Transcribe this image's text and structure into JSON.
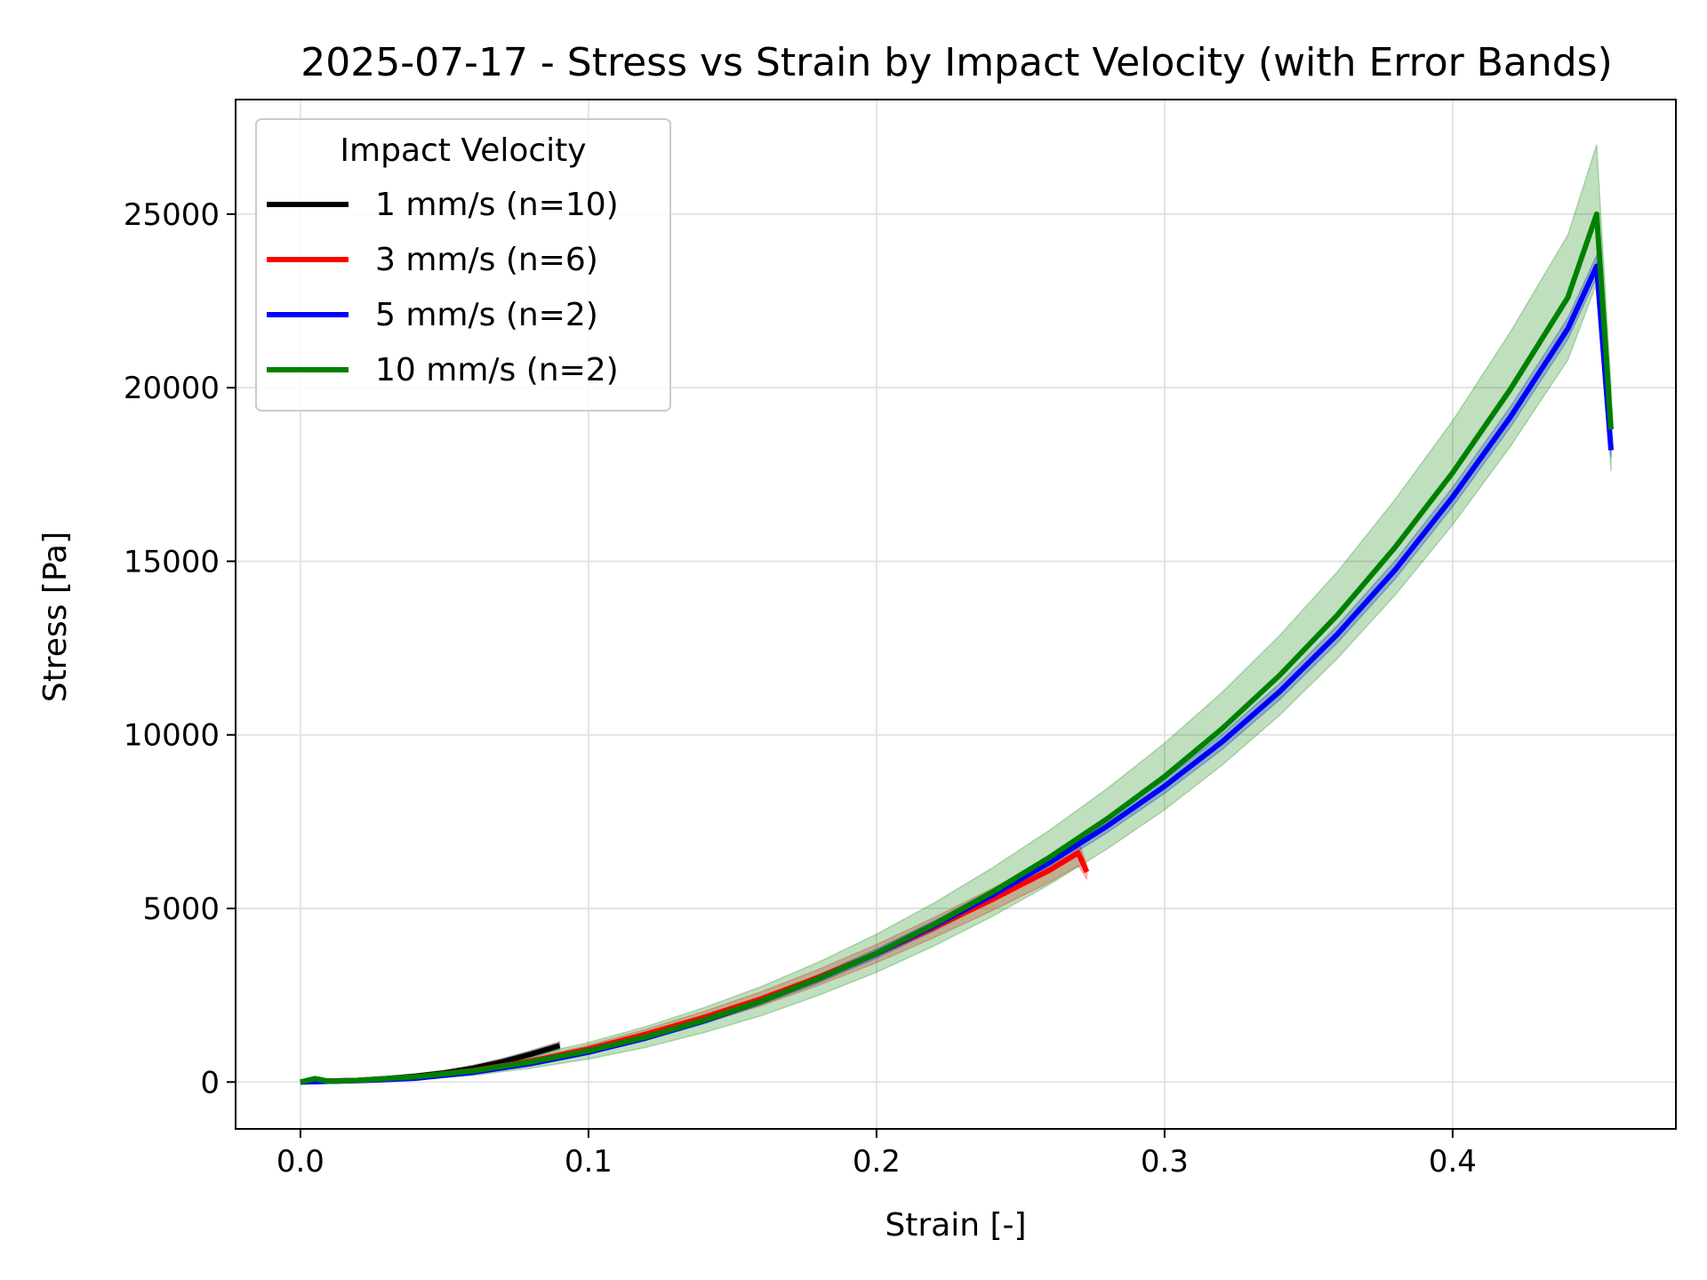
{
  "chart_data": {
    "type": "line",
    "title": "2025-07-17 - Stress vs Strain by Impact Velocity (with Error Bands)",
    "xlabel": "Strain [-]",
    "ylabel": "Stress [Pa]",
    "xlim": [
      -0.0225,
      0.4775
    ],
    "ylim": [
      -1350,
      28300
    ],
    "xticks": [
      0.0,
      0.1,
      0.2,
      0.3,
      0.4
    ],
    "xtick_labels": [
      "0.0",
      "0.1",
      "0.2",
      "0.3",
      "0.4"
    ],
    "yticks": [
      0,
      5000,
      10000,
      15000,
      20000,
      25000
    ],
    "ytick_labels": [
      "0",
      "5000",
      "10000",
      "15000",
      "20000",
      "25000"
    ],
    "grid": true,
    "legend": {
      "title": "Impact Velocity",
      "position": "top-left"
    },
    "series": [
      {
        "name": "1 mm/s (n=10)",
        "color": "#000000",
        "x": [
          0.0,
          0.005,
          0.01,
          0.02,
          0.03,
          0.04,
          0.05,
          0.06,
          0.07,
          0.08,
          0.09
        ],
        "y": [
          0,
          20,
          30,
          50,
          100,
          170,
          260,
          400,
          580,
          800,
          1050
        ],
        "band": [
          0,
          10,
          15,
          25,
          40,
          55,
          70,
          85,
          95,
          105,
          110
        ]
      },
      {
        "name": "3 mm/s (n=6)",
        "color": "#ff0000",
        "x": [
          0.0,
          0.02,
          0.04,
          0.06,
          0.08,
          0.1,
          0.12,
          0.14,
          0.16,
          0.18,
          0.2,
          0.22,
          0.24,
          0.26,
          0.27,
          0.273
        ],
        "y": [
          0,
          50,
          150,
          330,
          600,
          950,
          1380,
          1860,
          2400,
          3020,
          3700,
          4450,
          5250,
          6100,
          6600,
          6050
        ],
        "band": [
          0,
          10,
          30,
          55,
          80,
          110,
          140,
          170,
          200,
          230,
          260,
          290,
          320,
          350,
          370,
          200
        ]
      },
      {
        "name": "5 mm/s (n=2)",
        "color": "#0000ff",
        "x": [
          0.0,
          0.01,
          0.02,
          0.03,
          0.04,
          0.06,
          0.08,
          0.1,
          0.12,
          0.14,
          0.16,
          0.18,
          0.2,
          0.22,
          0.24,
          0.26,
          0.28,
          0.3,
          0.32,
          0.34,
          0.36,
          0.38,
          0.4,
          0.42,
          0.44,
          0.45,
          0.455
        ],
        "y": [
          0,
          20,
          40,
          70,
          110,
          280,
          530,
          860,
          1270,
          1760,
          2330,
          2980,
          3700,
          4500,
          5370,
          6320,
          7370,
          8520,
          9800,
          11250,
          12900,
          14750,
          16850,
          19150,
          21700,
          23500,
          18200
        ],
        "band": [
          0,
          5,
          10,
          15,
          20,
          30,
          40,
          55,
          70,
          85,
          100,
          115,
          130,
          145,
          160,
          175,
          190,
          205,
          220,
          235,
          250,
          265,
          280,
          295,
          310,
          320,
          200
        ]
      },
      {
        "name": "10 mm/s (n=2)",
        "color": "#008000",
        "x": [
          0.0,
          0.005,
          0.01,
          0.02,
          0.04,
          0.06,
          0.08,
          0.1,
          0.12,
          0.14,
          0.16,
          0.18,
          0.2,
          0.22,
          0.24,
          0.26,
          0.28,
          0.3,
          0.32,
          0.34,
          0.36,
          0.38,
          0.4,
          0.42,
          0.44,
          0.45,
          0.455
        ],
        "y": [
          0,
          100,
          20,
          50,
          150,
          320,
          580,
          900,
          1300,
          1780,
          2330,
          2980,
          3710,
          4540,
          5460,
          6470,
          7580,
          8800,
          10180,
          11720,
          13450,
          15400,
          17550,
          19950,
          22600,
          25000,
          18800
        ],
        "band": [
          0,
          30,
          20,
          40,
          80,
          130,
          180,
          240,
          300,
          360,
          420,
          480,
          550,
          620,
          700,
          780,
          870,
          960,
          1050,
          1150,
          1250,
          1380,
          1500,
          1650,
          1800,
          2000,
          1200
        ]
      }
    ]
  }
}
